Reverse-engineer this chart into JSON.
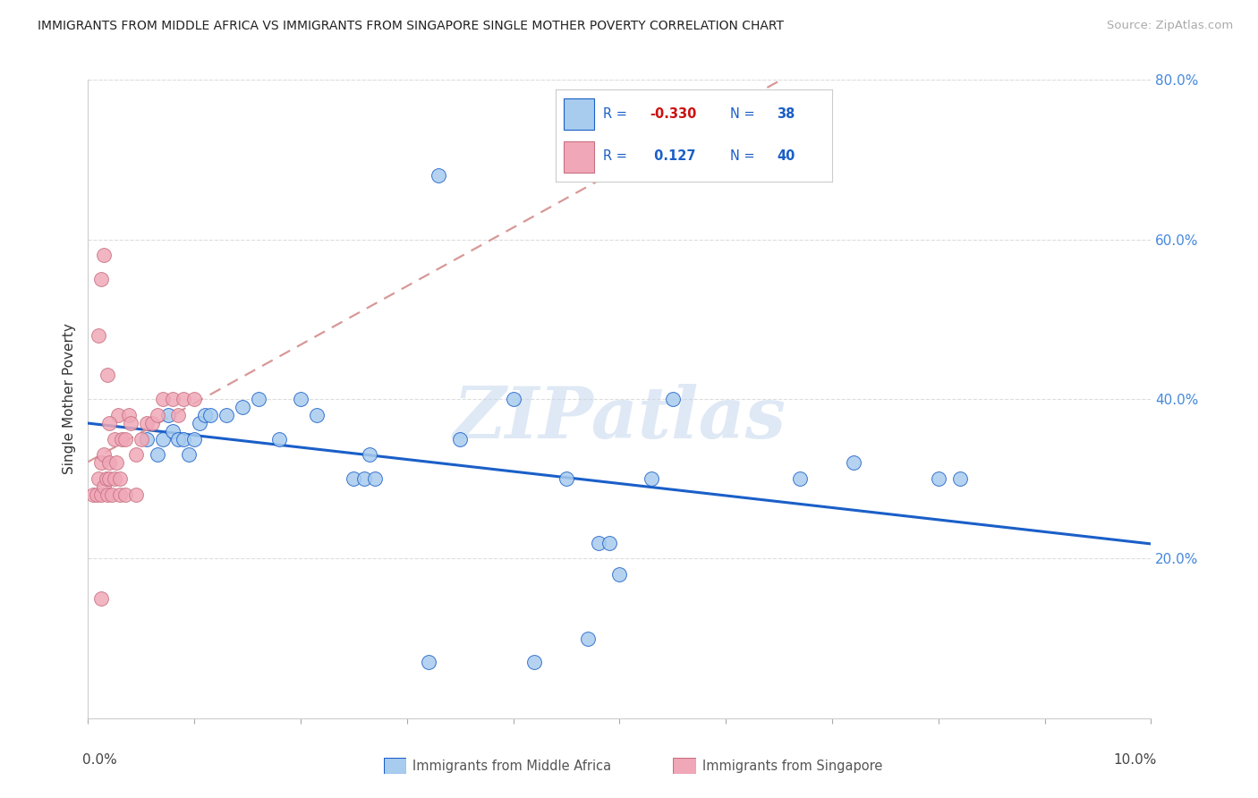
{
  "title": "IMMIGRANTS FROM MIDDLE AFRICA VS IMMIGRANTS FROM SINGAPORE SINGLE MOTHER POVERTY CORRELATION CHART",
  "source": "Source: ZipAtlas.com",
  "ylabel": "Single Mother Poverty",
  "legend_label1": "Immigrants from Middle Africa",
  "legend_label2": "Immigrants from Singapore",
  "R1_text": "-0.330",
  "R2_text": "0.127",
  "N1": "38",
  "N2": "40",
  "color1": "#A8CCEE",
  "color2": "#F0A8B8",
  "line1_color": "#1A5FC8",
  "line2_color": "#D89898",
  "watermark": "ZIPatlas",
  "xlim": [
    0.0,
    10.0
  ],
  "ylim": [
    0.0,
    80.0
  ],
  "blue_x": [
    3.3,
    0.55,
    0.65,
    0.7,
    0.75,
    0.8,
    0.85,
    0.9,
    0.95,
    1.0,
    1.05,
    1.1,
    1.15,
    1.3,
    1.45,
    1.6,
    1.8,
    2.0,
    2.15,
    2.5,
    2.6,
    2.65,
    2.7,
    3.5,
    4.0,
    4.5,
    4.8,
    4.9,
    5.0,
    5.3,
    5.5,
    7.2,
    8.0,
    8.2,
    3.2,
    4.2,
    4.7,
    6.7
  ],
  "blue_y": [
    68.0,
    35.0,
    33.0,
    35.0,
    38.0,
    36.0,
    35.0,
    35.0,
    33.0,
    35.0,
    37.0,
    38.0,
    38.0,
    38.0,
    39.0,
    40.0,
    35.0,
    40.0,
    38.0,
    30.0,
    30.0,
    33.0,
    30.0,
    35.0,
    40.0,
    30.0,
    22.0,
    22.0,
    18.0,
    30.0,
    40.0,
    32.0,
    30.0,
    30.0,
    7.0,
    7.0,
    10.0,
    30.0
  ],
  "pink_x": [
    0.05,
    0.08,
    0.1,
    0.12,
    0.12,
    0.15,
    0.15,
    0.17,
    0.18,
    0.2,
    0.2,
    0.22,
    0.25,
    0.25,
    0.27,
    0.28,
    0.3,
    0.3,
    0.32,
    0.35,
    0.35,
    0.38,
    0.4,
    0.45,
    0.45,
    0.5,
    0.55,
    0.6,
    0.65,
    0.7,
    0.8,
    0.85,
    0.9,
    1.0,
    0.1,
    0.12,
    0.15,
    0.18,
    0.2,
    0.12
  ],
  "pink_y": [
    28.0,
    28.0,
    30.0,
    28.0,
    32.0,
    29.0,
    33.0,
    30.0,
    28.0,
    30.0,
    32.0,
    28.0,
    30.0,
    35.0,
    32.0,
    38.0,
    30.0,
    28.0,
    35.0,
    35.0,
    28.0,
    38.0,
    37.0,
    33.0,
    28.0,
    35.0,
    37.0,
    37.0,
    38.0,
    40.0,
    40.0,
    38.0,
    40.0,
    40.0,
    48.0,
    55.0,
    58.0,
    43.0,
    37.0,
    15.0
  ]
}
